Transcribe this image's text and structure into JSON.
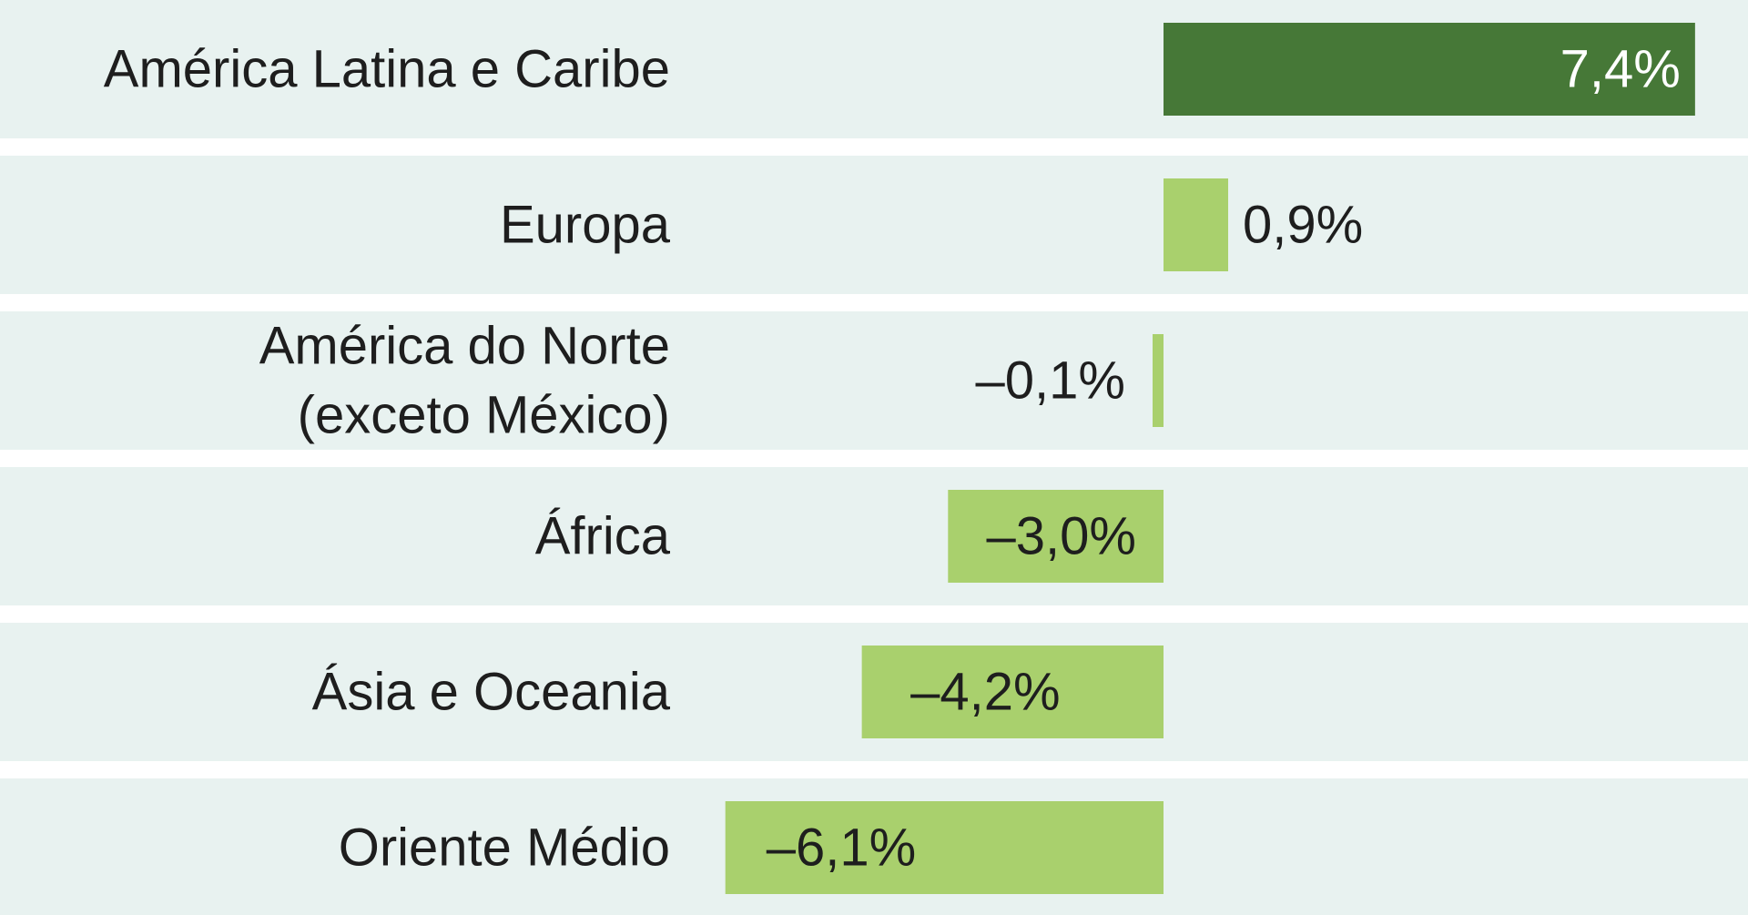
{
  "chart_data": {
    "type": "bar",
    "orientation": "horizontal",
    "categories": [
      [
        "América Latina e Caribe"
      ],
      [
        "Europa"
      ],
      [
        "América do Norte",
        "(exceto México)"
      ],
      [
        "África"
      ],
      [
        "Ásia e Oceania"
      ],
      [
        "Oriente Médio"
      ]
    ],
    "values": [
      7.4,
      0.9,
      -0.1,
      -3.0,
      -4.2,
      -6.1
    ],
    "value_labels": [
      "7,4%",
      "0,9%",
      "–0,1%",
      "–3,0%",
      "–4,2%",
      "–6,1%"
    ],
    "unit": "%",
    "title": "",
    "xlabel": "",
    "ylabel": "",
    "grid": false,
    "legend": "none"
  },
  "colors": {
    "band": "#e8f2f0",
    "highlight_bar": "#467837",
    "bar": "#a9d06d",
    "label_text": "#1e1e1e",
    "highlight_label_text": "#ffffff"
  }
}
